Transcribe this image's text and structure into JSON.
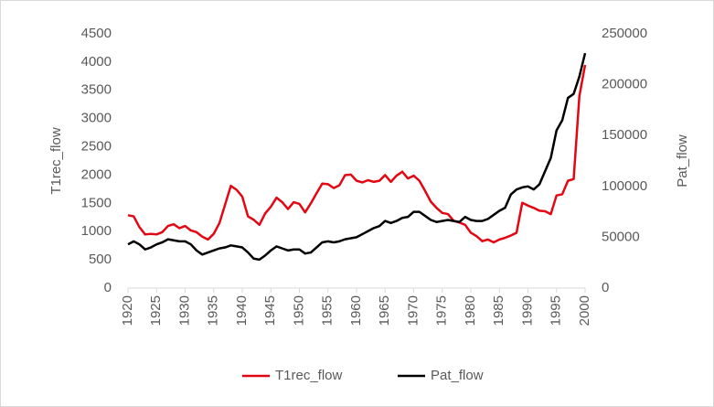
{
  "chart_data": {
    "type": "line",
    "x": [
      1920,
      1921,
      1922,
      1923,
      1924,
      1925,
      1926,
      1927,
      1928,
      1929,
      1930,
      1931,
      1932,
      1933,
      1934,
      1935,
      1936,
      1937,
      1938,
      1939,
      1940,
      1941,
      1942,
      1943,
      1944,
      1945,
      1946,
      1947,
      1948,
      1949,
      1950,
      1951,
      1952,
      1953,
      1954,
      1955,
      1956,
      1957,
      1958,
      1959,
      1960,
      1961,
      1962,
      1963,
      1964,
      1965,
      1966,
      1967,
      1968,
      1969,
      1970,
      1971,
      1972,
      1973,
      1974,
      1975,
      1976,
      1977,
      1978,
      1979,
      1980,
      1981,
      1982,
      1983,
      1984,
      1985,
      1986,
      1987,
      1988,
      1989,
      1990,
      1991,
      1992,
      1993,
      1994,
      1995,
      1996,
      1997,
      1998,
      1999,
      2000
    ],
    "series": [
      {
        "name": "T1rec_flow",
        "color": "#e30613",
        "values": [
          1290,
          1270,
          1080,
          950,
          960,
          950,
          990,
          1100,
          1130,
          1060,
          1100,
          1020,
          990,
          910,
          860,
          960,
          1150,
          1480,
          1810,
          1740,
          1620,
          1270,
          1210,
          1120,
          1320,
          1440,
          1600,
          1520,
          1400,
          1520,
          1490,
          1340,
          1500,
          1680,
          1850,
          1840,
          1770,
          1820,
          2000,
          2010,
          1900,
          1870,
          1910,
          1880,
          1900,
          2000,
          1880,
          1990,
          2060,
          1940,
          1990,
          1900,
          1720,
          1530,
          1420,
          1330,
          1310,
          1190,
          1160,
          1120,
          980,
          920,
          830,
          860,
          810,
          860,
          890,
          930,
          980,
          1510,
          1460,
          1420,
          1370,
          1360,
          1310,
          1640,
          1660,
          1900,
          1930,
          3400,
          3950
        ]
      },
      {
        "name": "Pat_flow",
        "color": "#000000",
        "axis": "y2",
        "values": [
          43000,
          46000,
          43000,
          38000,
          40000,
          43000,
          45000,
          48000,
          47000,
          46000,
          46000,
          43000,
          37000,
          33000,
          35000,
          37000,
          39000,
          40000,
          42000,
          41000,
          40000,
          35000,
          29000,
          28000,
          32000,
          37000,
          41000,
          39000,
          37000,
          38000,
          38000,
          34000,
          35000,
          40000,
          45000,
          46000,
          45000,
          46000,
          48000,
          49000,
          50000,
          53000,
          56000,
          59000,
          61000,
          66000,
          64000,
          66000,
          69000,
          70000,
          75000,
          75000,
          71000,
          67000,
          65000,
          66000,
          67000,
          66000,
          65000,
          70000,
          67000,
          66000,
          66000,
          68000,
          72000,
          76000,
          79000,
          92000,
          97000,
          99000,
          100000,
          97000,
          102000,
          115000,
          128000,
          155000,
          165000,
          187000,
          191000,
          208000,
          231000
        ]
      }
    ],
    "ylabel": "T1rec_flow",
    "y2label": "Pat_flow",
    "xlim": [
      1920,
      2000
    ],
    "xticks": [
      1920,
      1925,
      1930,
      1935,
      1940,
      1945,
      1950,
      1955,
      1960,
      1965,
      1970,
      1975,
      1980,
      1985,
      1990,
      1995,
      2000
    ],
    "ylim": [
      0,
      4500
    ],
    "yticks": [
      0,
      500,
      1000,
      1500,
      2000,
      2500,
      3000,
      3500,
      4000,
      4500
    ],
    "y2lim": [
      0,
      250000
    ],
    "y2ticks": [
      0,
      50000,
      100000,
      150000,
      200000,
      250000
    ],
    "legend": "bottom"
  }
}
